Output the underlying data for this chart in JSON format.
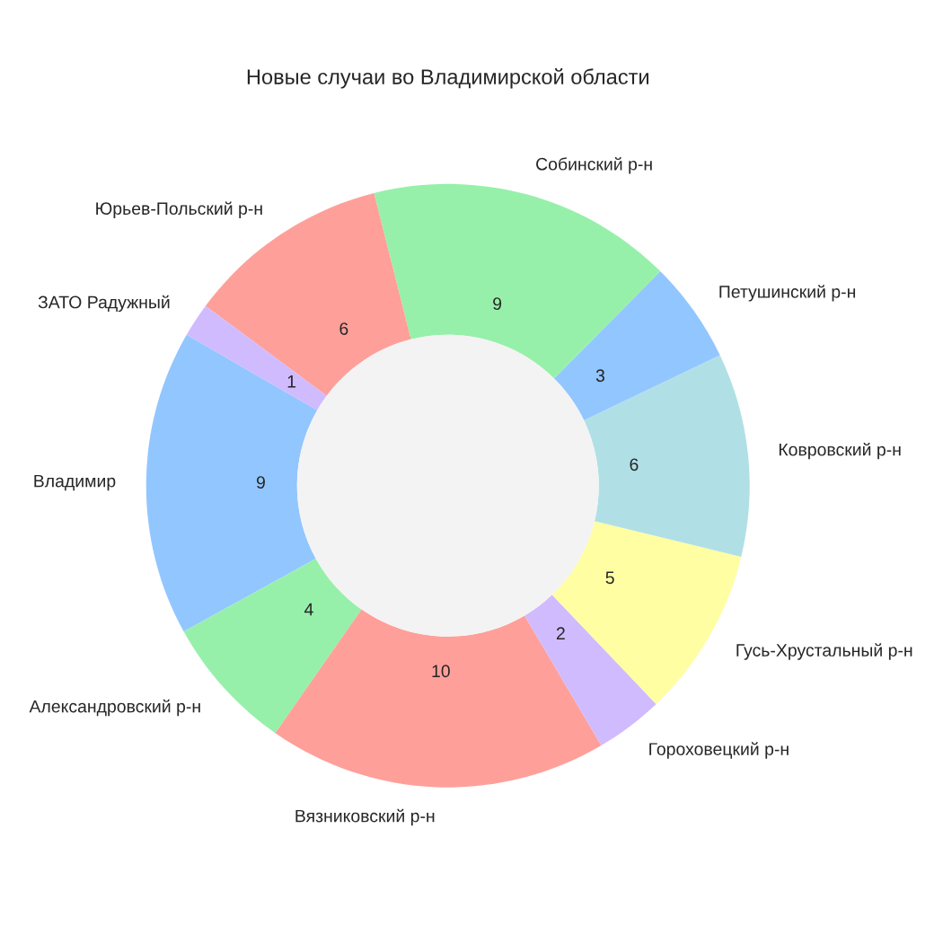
{
  "chart_data": {
    "type": "donut",
    "title": "Новые случаи во Владимирской области",
    "categories": [
      "Владимир",
      "Александровский р-н",
      "Вязниковский р-н",
      "Гороховецкий р-н",
      "Гусь-Хрустальный р-н",
      "Ковровский р-н",
      "Петушинский р-н",
      "Собинский р-н",
      "Юрьев-Польский р-н",
      "ЗАТО Радужный"
    ],
    "values": [
      9,
      4,
      10,
      2,
      5,
      6,
      3,
      9,
      6,
      1
    ],
    "colors": [
      "#92c6ff",
      "#97f0aa",
      "#ff9f9a",
      "#d0bbff",
      "#fffea3",
      "#b0e0e6",
      "#92c6ff",
      "#97f0aa",
      "#ff9f9a",
      "#d0bbff"
    ],
    "data_labels": true
  }
}
